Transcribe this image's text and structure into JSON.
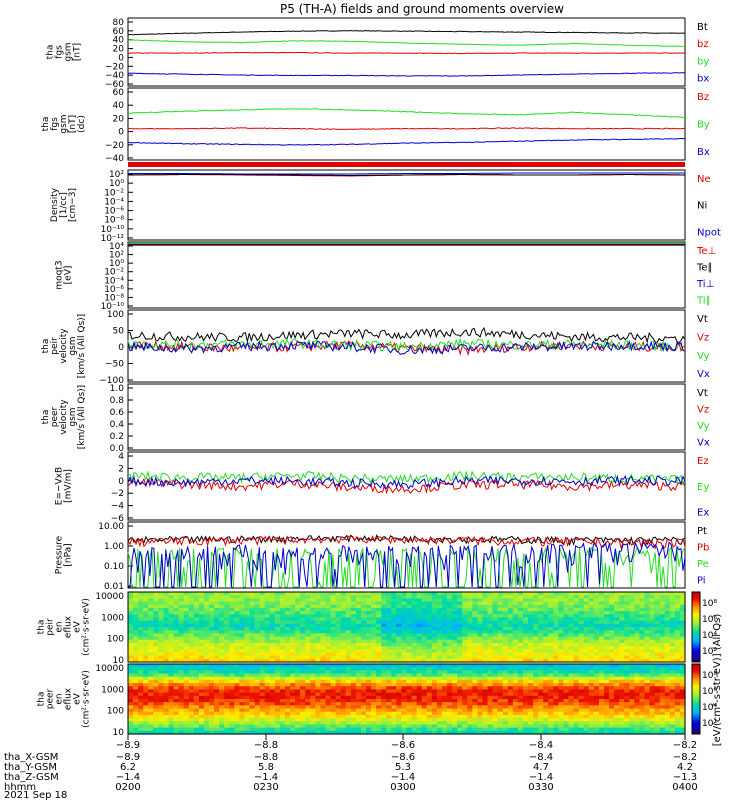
{
  "title": "P5 (TH-A) fields and ground moments overview",
  "colors": {
    "black": "#000000",
    "red": "#e00000",
    "green": "#22dd22",
    "blue": "#0000cc"
  },
  "chart_data": [
    {
      "type": "line",
      "ylabel": [
        "tha",
        "fgs",
        "gsm",
        "[nT]"
      ],
      "yticks": [
        "80",
        "60",
        "40",
        "20",
        "0",
        "−20",
        "−40",
        "−60"
      ],
      "ylim": [
        -65,
        90
      ],
      "series": [
        {
          "name": "Bt",
          "color": "black",
          "values": [
            52,
            55,
            58,
            60,
            61,
            60,
            59,
            58,
            57,
            56,
            55
          ]
        },
        {
          "name": "bz",
          "color": "red",
          "values": [
            10,
            10,
            11,
            11,
            10,
            10,
            9,
            10,
            10,
            10,
            10
          ]
        },
        {
          "name": "by",
          "color": "green",
          "values": [
            40,
            36,
            34,
            38,
            37,
            33,
            30,
            28,
            32,
            28,
            25
          ]
        },
        {
          "name": "bx",
          "color": "blue",
          "values": [
            -36,
            -38,
            -40,
            -41,
            -41,
            -42,
            -42,
            -40,
            -38,
            -36,
            -35
          ]
        }
      ]
    },
    {
      "type": "line",
      "ylabel": [
        "tha",
        "fgs",
        "gsm",
        "[nT]",
        "(dc)"
      ],
      "yticks": [
        "60",
        "40",
        "20",
        "0",
        "−20",
        "−40"
      ],
      "ylim": [
        -50,
        65
      ],
      "series": [
        {
          "name": "Bz",
          "color": "red",
          "values": [
            0,
            0,
            1,
            0,
            -1,
            0,
            0,
            1,
            0,
            0,
            0
          ]
        },
        {
          "name": "By",
          "color": "green",
          "values": [
            25,
            28,
            30,
            32,
            30,
            27,
            24,
            22,
            26,
            22,
            18
          ]
        },
        {
          "name": "Bx",
          "color": "blue",
          "values": [
            -22,
            -24,
            -25,
            -26,
            -25,
            -23,
            -22,
            -20,
            -18,
            -17,
            -16
          ]
        }
      ]
    },
    {
      "type": "line",
      "scale": "log",
      "ylabel": [
        "Density",
        "[1/cc]",
        "[cm−3]"
      ],
      "yticks": [
        "10²",
        "10⁰",
        "10⁻²",
        "10⁻⁴",
        "10⁻⁶",
        "10⁻⁸",
        "10⁻¹⁰",
        "10⁻¹²"
      ],
      "ylim": [
        -12,
        2
      ],
      "series": [
        {
          "name": "Ne",
          "color": "red",
          "values": [
            1.0,
            1.1,
            1.0,
            0.9,
            0.8,
            1.0,
            1.1,
            1.0,
            1.0,
            1.1,
            1.0
          ]
        },
        {
          "name": "Ni",
          "color": "black",
          "values": [
            1.0,
            1.1,
            1.1,
            1.0,
            0.9,
            1.0,
            1.1,
            1.0,
            1.0,
            1.1,
            1.0
          ]
        },
        {
          "name": "Npot",
          "color": "blue",
          "values": [
            1.3,
            1.3,
            1.2,
            1.2,
            1.2,
            1.3,
            1.3,
            1.4,
            1.4,
            1.4,
            1.4
          ]
        }
      ]
    },
    {
      "type": "line",
      "scale": "log",
      "ylabel": [
        "moqt3",
        "[eV]"
      ],
      "yticks": [
        "10⁴",
        "10²",
        "10⁰",
        "10⁻²",
        "10⁻⁴",
        "10⁻⁶",
        "10⁻⁸",
        "10⁻¹⁰"
      ],
      "ylim": [
        -10,
        4
      ],
      "series": [
        {
          "name": "Te⊥",
          "color": "red",
          "values": [
            3.3,
            3.3,
            3.3,
            3.3,
            3.3,
            3.3,
            3.3,
            3.3,
            3.3,
            3.3,
            3.3
          ]
        },
        {
          "name": "Te∥",
          "color": "black",
          "values": [
            3.4,
            3.4,
            3.4,
            3.4,
            3.4,
            3.4,
            3.4,
            3.4,
            3.4,
            3.4,
            3.4
          ]
        },
        {
          "name": "Ti⊥",
          "color": "blue",
          "values": [
            3.6,
            3.6,
            3.6,
            3.6,
            3.6,
            3.6,
            3.6,
            3.6,
            3.6,
            3.6,
            3.6
          ]
        },
        {
          "name": "Ti∥",
          "color": "green",
          "values": [
            3.7,
            3.7,
            3.7,
            3.7,
            3.7,
            3.7,
            3.7,
            3.7,
            3.7,
            3.7,
            3.7
          ]
        }
      ]
    },
    {
      "type": "line",
      "ylabel": [
        "tha",
        "peir",
        "velocity",
        "gsm",
        "[km/s (All Qs)]"
      ],
      "yticks": [
        "100",
        "50",
        "0",
        "−50",
        "−100"
      ],
      "ylim": [
        -105,
        110
      ],
      "noise": 14,
      "series": [
        {
          "name": "Vt",
          "color": "black",
          "values": [
            35,
            30,
            28,
            35,
            40,
            35,
            45,
            38,
            30,
            28,
            25
          ]
        },
        {
          "name": "Vz",
          "color": "red",
          "values": [
            5,
            0,
            -5,
            0,
            5,
            -5,
            -10,
            0,
            5,
            0,
            0
          ]
        },
        {
          "name": "Vy",
          "color": "green",
          "values": [
            10,
            5,
            8,
            10,
            5,
            0,
            10,
            5,
            8,
            5,
            0
          ]
        },
        {
          "name": "Vx",
          "color": "blue",
          "values": [
            0,
            -5,
            0,
            5,
            0,
            -10,
            -5,
            0,
            0,
            5,
            0
          ]
        }
      ]
    },
    {
      "type": "line",
      "ylabel": [
        "tha",
        "peer",
        "velocity",
        "gsm",
        "[km/s (All Qs)]"
      ],
      "yticks": [
        "1.0",
        "0.8",
        "0.6",
        "0.4",
        "0.2",
        "0.0"
      ],
      "ylim": [
        0,
        1.0
      ],
      "series": [
        {
          "name": "Vt",
          "color": "black",
          "values": []
        },
        {
          "name": "Vz",
          "color": "red",
          "values": []
        },
        {
          "name": "Vy",
          "color": "green",
          "values": []
        },
        {
          "name": "Vx",
          "color": "blue",
          "values": []
        }
      ]
    },
    {
      "type": "line",
      "ylabel": [
        "E=−VxB",
        "[mV/m]"
      ],
      "yticks": [
        "4",
        "2",
        "0",
        "−2",
        "−4",
        "−6"
      ],
      "ylim": [
        -6,
        4.5
      ],
      "noise": 0.7,
      "series": [
        {
          "name": "Ez",
          "color": "red",
          "values": [
            -0.2,
            -0.5,
            -0.8,
            -0.3,
            -1.0,
            -1.2,
            -0.6,
            -0.5,
            -0.8,
            -0.6,
            -0.8
          ]
        },
        {
          "name": "Ey",
          "color": "green",
          "values": [
            0.8,
            0.6,
            0.5,
            0.9,
            0.4,
            0.3,
            0.8,
            0.6,
            0.6,
            0.4,
            0.2
          ]
        },
        {
          "name": "Ex",
          "color": "blue",
          "values": [
            0.0,
            -0.2,
            0.1,
            0.0,
            -0.3,
            -0.5,
            0.0,
            0.1,
            0.0,
            0.1,
            0.0
          ]
        }
      ]
    },
    {
      "type": "line",
      "scale": "log",
      "ylabel": [
        "Pressure",
        "[nPa]"
      ],
      "yticks": [
        "10.00",
        "1.00",
        "0.10",
        "0.01"
      ],
      "ylim": [
        -2,
        1
      ],
      "series": [
        {
          "name": "Pt",
          "color": "black",
          "values": [
            1.5,
            1.6,
            1.7,
            1.8,
            1.9,
            1.8,
            1.7,
            1.6,
            1.5,
            1.5,
            1.5
          ]
        },
        {
          "name": "Pb",
          "color": "red",
          "values": [
            1.3,
            1.4,
            1.5,
            1.6,
            1.7,
            1.6,
            1.5,
            1.4,
            1.3,
            1.2,
            1.1
          ]
        },
        {
          "name": "Pe",
          "color": "green",
          "values": [
            0.08,
            0.07,
            0.065,
            0.06,
            0.05,
            0.035,
            0.06,
            0.09,
            0.13,
            0.16,
            0.18
          ]
        },
        {
          "name": "Pi",
          "color": "blue",
          "values": [
            0.25,
            0.3,
            0.32,
            0.3,
            0.25,
            0.17,
            0.3,
            0.45,
            0.55,
            0.6,
            0.62
          ]
        }
      ]
    },
    {
      "type": "heatmap",
      "ylabel": [
        "tha",
        "peir",
        "en",
        "eflux",
        "eV",
        "(cm²·s·sr·eV)"
      ],
      "yticks": [
        "10000",
        "1000",
        "100",
        "10"
      ],
      "colorbar_ticks": [
        "10⁸",
        "10⁶",
        "10⁴",
        "10²"
      ],
      "levels": [
        0.55,
        0.55,
        0.5,
        0.45,
        0.4,
        0.5,
        0.6,
        0.65,
        0.7
      ]
    },
    {
      "type": "heatmap",
      "ylabel": [
        "tha",
        "peer",
        "en",
        "eflux",
        "eV",
        "(cm²·s·sr·eV)"
      ],
      "yticks": [
        "10000",
        "1000",
        "100",
        "10"
      ],
      "colorbar_ticks": [
        "10⁸",
        "10⁶",
        "10⁴",
        "10²"
      ],
      "levels": [
        0.35,
        0.45,
        0.75,
        0.9,
        0.9,
        0.8,
        0.7,
        0.55,
        0.4
      ]
    }
  ],
  "colorbar_label": "[eV/(cm²-s-str-eV)] (All Qs)",
  "xaxis": {
    "ticks": [
      "−8.9",
      "−8.8",
      "−8.6",
      "−8.4",
      "−8.2"
    ],
    "rows": [
      {
        "label": "tha_X-GSM",
        "values": [
          "−8.9",
          "−8.8",
          "−8.6",
          "−8.4",
          "−8.2"
        ]
      },
      {
        "label": "tha_Y-GSM",
        "values": [
          "6.2",
          "5.8",
          "5.3",
          "4.7",
          "4.2"
        ]
      },
      {
        "label": "tha_Z-GSM",
        "values": [
          "−1.4",
          "−1.4",
          "−1.4",
          "−1.4",
          "−1.3"
        ]
      },
      {
        "label": "hhmm",
        "values": [
          "0200",
          "0230",
          "0300",
          "0330",
          "0400"
        ]
      }
    ],
    "date": "2021 Sep 18"
  }
}
